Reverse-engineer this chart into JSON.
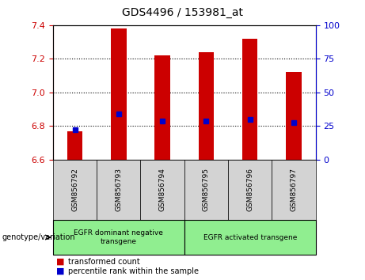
{
  "title": "GDS4496 / 153981_at",
  "samples": [
    "GSM856792",
    "GSM856793",
    "GSM856794",
    "GSM856795",
    "GSM856796",
    "GSM856797"
  ],
  "bar_values": [
    6.77,
    7.38,
    7.22,
    7.24,
    7.32,
    7.12
  ],
  "bar_base": 6.6,
  "percentile_values": [
    6.78,
    6.87,
    6.83,
    6.83,
    6.84,
    6.82
  ],
  "ylim": [
    6.6,
    7.4
  ],
  "y_ticks": [
    6.6,
    6.8,
    7.0,
    7.2,
    7.4
  ],
  "right_ticks": [
    0,
    25,
    50,
    75,
    100
  ],
  "bar_color": "#cc0000",
  "percentile_color": "#0000cc",
  "groups": [
    {
      "label": "EGFR dominant negative\ntransgene",
      "n_samples": 3,
      "color": "#90ee90"
    },
    {
      "label": "EGFR activated transgene",
      "n_samples": 3,
      "color": "#90ee90"
    }
  ],
  "left_label": "genotype/variation",
  "legend_bar_label": "transformed count",
  "legend_pct_label": "percentile rank within the sample",
  "sample_bg": "#d3d3d3",
  "left_axis_color": "#cc0000",
  "right_axis_color": "#0000cc",
  "bar_width": 0.35,
  "title_fontsize": 10,
  "tick_fontsize": 8,
  "sample_fontsize": 6.5,
  "legend_fontsize": 7,
  "group_fontsize": 6.5
}
